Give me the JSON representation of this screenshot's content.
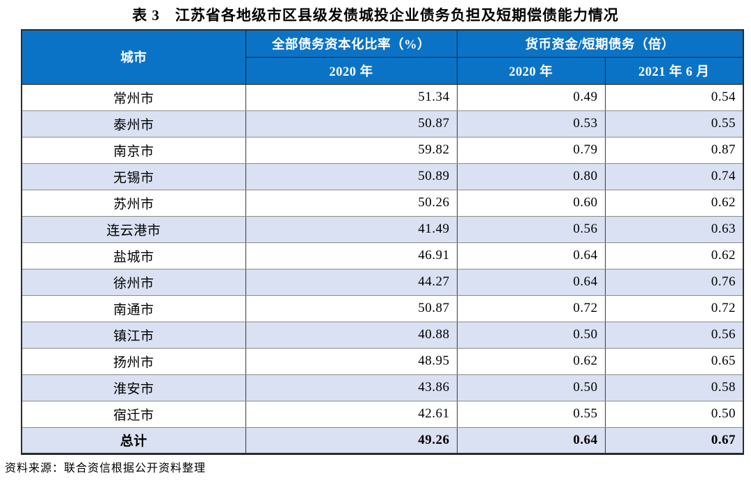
{
  "title": "表 3　江苏省各地级市区县级发债城投企业债务负担及短期偿债能力情况",
  "table": {
    "header": {
      "city": "城市",
      "col_debt": "全部债务资本化比率（%）",
      "col_cash": "货币资金/短期债务（倍）",
      "sub_debt_2020": "2020 年",
      "sub_cash_2020": "2020 年",
      "sub_cash_2021": "2021 年 6 月"
    },
    "rows": [
      {
        "city": "常州市",
        "debt_2020": "51.34",
        "cash_2020": "0.49",
        "cash_2021": "0.54"
      },
      {
        "city": "泰州市",
        "debt_2020": "50.87",
        "cash_2020": "0.53",
        "cash_2021": "0.55"
      },
      {
        "city": "南京市",
        "debt_2020": "59.82",
        "cash_2020": "0.79",
        "cash_2021": "0.87"
      },
      {
        "city": "无锡市",
        "debt_2020": "50.89",
        "cash_2020": "0.80",
        "cash_2021": "0.74"
      },
      {
        "city": "苏州市",
        "debt_2020": "50.26",
        "cash_2020": "0.60",
        "cash_2021": "0.62"
      },
      {
        "city": "连云港市",
        "debt_2020": "41.49",
        "cash_2020": "0.56",
        "cash_2021": "0.63"
      },
      {
        "city": "盐城市",
        "debt_2020": "46.91",
        "cash_2020": "0.64",
        "cash_2021": "0.62"
      },
      {
        "city": "徐州市",
        "debt_2020": "44.27",
        "cash_2020": "0.64",
        "cash_2021": "0.76"
      },
      {
        "city": "南通市",
        "debt_2020": "50.87",
        "cash_2020": "0.72",
        "cash_2021": "0.72"
      },
      {
        "city": "镇江市",
        "debt_2020": "40.88",
        "cash_2020": "0.50",
        "cash_2021": "0.56"
      },
      {
        "city": "扬州市",
        "debt_2020": "48.95",
        "cash_2020": "0.62",
        "cash_2021": "0.65"
      },
      {
        "city": "淮安市",
        "debt_2020": "43.86",
        "cash_2020": "0.50",
        "cash_2021": "0.58"
      },
      {
        "city": "宿迁市",
        "debt_2020": "42.61",
        "cash_2020": "0.55",
        "cash_2021": "0.50"
      }
    ],
    "total": {
      "city": "总计",
      "debt_2020": "49.26",
      "cash_2020": "0.64",
      "cash_2021": "0.67"
    }
  },
  "source_note": "资料来源：联合资信根据公开资料整理",
  "colors": {
    "header_bg": "#0b73c6",
    "header_text": "#ffffff",
    "stripe_bg": "#d9e1f2",
    "body_text": "#000000"
  }
}
